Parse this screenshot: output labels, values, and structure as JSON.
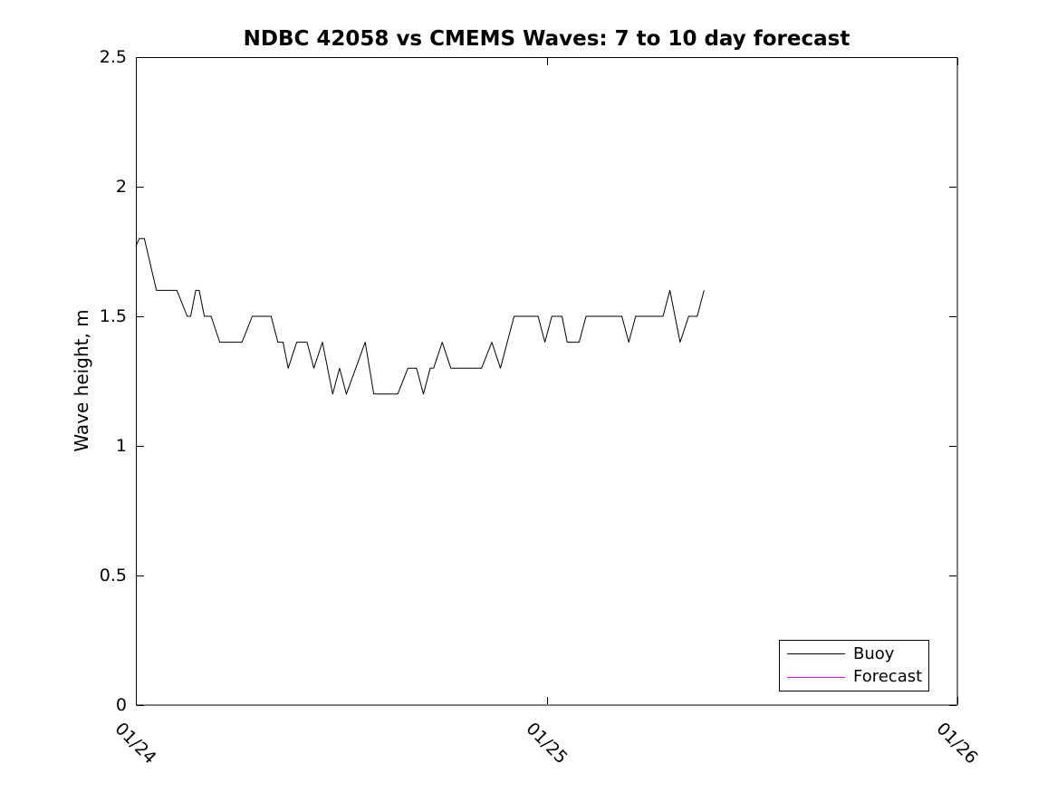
{
  "figure": {
    "background": "#ffffff",
    "axis_color": "#000000"
  },
  "chart_data": {
    "type": "line",
    "title": "NDBC 42058 vs CMEMS Waves: 7 to 10 day forecast",
    "xlabel": "",
    "ylabel": "Wave height, m",
    "grid": false,
    "axes_box": true,
    "x_axis": {
      "unit": "date (MM/DD)",
      "tick_labels": [
        "01/24",
        "01/25",
        "01/26"
      ],
      "tick_hours": [
        0,
        24,
        48
      ],
      "range_hours": [
        0,
        48
      ],
      "label_rotation_deg": 45
    },
    "y_axis": {
      "tick_labels": [
        "0",
        "0.5",
        "1",
        "1.5",
        "2",
        "2.5"
      ],
      "tick_values": [
        0,
        0.5,
        1,
        1.5,
        2,
        2.5
      ],
      "range": [
        0,
        2.5
      ]
    },
    "legend": {
      "position": "lower-right",
      "entries": [
        {
          "label": "Buoy",
          "color": "#000000"
        },
        {
          "label": "Forecast",
          "color": "#ff00ff"
        }
      ]
    },
    "series": [
      {
        "name": "Buoy",
        "color": "#000000",
        "points_hours_vs_m": [
          [
            0.0,
            1.77
          ],
          [
            0.2,
            1.8
          ],
          [
            0.5,
            1.8
          ],
          [
            1.2,
            1.6
          ],
          [
            2.4,
            1.6
          ],
          [
            3.0,
            1.5
          ],
          [
            3.2,
            1.5
          ],
          [
            3.5,
            1.6
          ],
          [
            3.7,
            1.6
          ],
          [
            4.0,
            1.5
          ],
          [
            4.4,
            1.5
          ],
          [
            4.9,
            1.4
          ],
          [
            6.2,
            1.4
          ],
          [
            6.8,
            1.5
          ],
          [
            7.9,
            1.5
          ],
          [
            8.3,
            1.4
          ],
          [
            8.6,
            1.4
          ],
          [
            8.9,
            1.3
          ],
          [
            9.4,
            1.4
          ],
          [
            10.0,
            1.4
          ],
          [
            10.4,
            1.3
          ],
          [
            10.9,
            1.4
          ],
          [
            11.5,
            1.2
          ],
          [
            11.9,
            1.3
          ],
          [
            12.3,
            1.2
          ],
          [
            13.4,
            1.4
          ],
          [
            13.9,
            1.2
          ],
          [
            15.3,
            1.2
          ],
          [
            15.9,
            1.3
          ],
          [
            16.4,
            1.3
          ],
          [
            16.8,
            1.2
          ],
          [
            17.2,
            1.3
          ],
          [
            17.4,
            1.3
          ],
          [
            17.9,
            1.4
          ],
          [
            18.4,
            1.3
          ],
          [
            20.2,
            1.3
          ],
          [
            20.8,
            1.4
          ],
          [
            21.3,
            1.3
          ],
          [
            22.1,
            1.5
          ],
          [
            23.5,
            1.5
          ],
          [
            23.9,
            1.4
          ],
          [
            24.3,
            1.5
          ],
          [
            24.9,
            1.5
          ],
          [
            25.2,
            1.4
          ],
          [
            25.9,
            1.4
          ],
          [
            26.3,
            1.5
          ],
          [
            28.4,
            1.5
          ],
          [
            28.8,
            1.4
          ],
          [
            29.2,
            1.5
          ],
          [
            30.8,
            1.5
          ],
          [
            31.2,
            1.6
          ],
          [
            31.8,
            1.4
          ],
          [
            32.3,
            1.5
          ],
          [
            32.8,
            1.5
          ],
          [
            33.2,
            1.6
          ]
        ]
      },
      {
        "name": "Forecast",
        "color": "#ff00ff",
        "points_hours_vs_m": []
      }
    ]
  }
}
